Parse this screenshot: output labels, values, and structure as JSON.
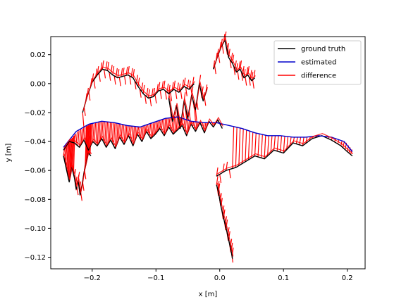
{
  "chart_data": {
    "type": "line",
    "title": "",
    "xlabel": "x [m]",
    "ylabel": "y [m]",
    "xlim": [
      -0.265,
      0.228
    ],
    "ylim": [
      -0.128,
      0.0325
    ],
    "xticks": [
      -0.2,
      -0.1,
      0.0,
      0.1,
      0.2
    ],
    "xtick_labels": [
      "−0.2",
      "−0.1",
      "0.0",
      "0.1",
      "0.2"
    ],
    "yticks": [
      0.02,
      0.0,
      -0.02,
      -0.04,
      -0.06,
      -0.08,
      -0.1,
      -0.12
    ],
    "ytick_labels": [
      "0.02",
      "0.00",
      "−0.02",
      "−0.04",
      "−0.06",
      "−0.08",
      "−0.10",
      "−0.12"
    ],
    "grid": false,
    "legend_position": "top-right",
    "series": [
      {
        "name": "ground truth",
        "color": "#000000",
        "segments": [
          {
            "x": [
              -0.245,
              -0.236,
              -0.228,
              -0.22,
              -0.213,
              -0.206,
              -0.199,
              -0.192,
              -0.185,
              -0.178,
              -0.171,
              -0.164,
              -0.157,
              -0.15,
              -0.143,
              -0.136,
              -0.129,
              -0.122,
              -0.115,
              -0.108,
              -0.101,
              -0.094,
              -0.087,
              -0.08,
              -0.073,
              -0.066,
              -0.059,
              -0.052,
              -0.045,
              -0.038,
              -0.031,
              -0.024,
              -0.017,
              -0.01,
              -0.003,
              0.004
            ],
            "y": [
              -0.046,
              -0.04,
              -0.041,
              -0.044,
              -0.039,
              -0.046,
              -0.04,
              -0.043,
              -0.038,
              -0.044,
              -0.039,
              -0.045,
              -0.037,
              -0.042,
              -0.036,
              -0.043,
              -0.035,
              -0.04,
              -0.033,
              -0.038,
              -0.035,
              -0.031,
              -0.036,
              -0.03,
              -0.035,
              -0.032,
              -0.029,
              -0.036,
              -0.028,
              -0.033,
              -0.027,
              -0.034,
              -0.026,
              -0.03,
              -0.025,
              -0.031
            ]
          },
          {
            "x": [
              -0.245,
              -0.24,
              -0.236,
              -0.232,
              -0.228,
              -0.225,
              -0.222,
              -0.219,
              -0.216,
              -0.213,
              -0.21,
              -0.206,
              -0.202
            ],
            "y": [
              -0.05,
              -0.06,
              -0.068,
              -0.058,
              -0.065,
              -0.073,
              -0.067,
              -0.077,
              -0.071,
              -0.062,
              -0.056,
              -0.048,
              -0.05
            ]
          },
          {
            "x": [
              -0.215,
              -0.208,
              -0.2,
              -0.192,
              -0.184,
              -0.176,
              -0.168,
              -0.16,
              -0.152,
              -0.144,
              -0.136,
              -0.128,
              -0.12,
              -0.112,
              -0.104,
              -0.096,
              -0.088,
              -0.08,
              -0.072,
              -0.064,
              -0.056,
              -0.048,
              -0.04
            ],
            "y": [
              -0.02,
              -0.009,
              0.001,
              0.006,
              0.01,
              0.009,
              0.006,
              0.004,
              0.005,
              0.006,
              0.004,
              -0.002,
              -0.007,
              -0.01,
              -0.009,
              -0.005,
              -0.004,
              -0.007,
              -0.004,
              -0.006,
              -0.002,
              -0.004,
              0.0
            ]
          },
          {
            "x": [
              -0.08,
              -0.074,
              -0.068,
              -0.062,
              -0.056,
              -0.05,
              -0.044,
              -0.038,
              -0.032,
              -0.026,
              -0.02
            ],
            "y": [
              -0.01,
              -0.026,
              -0.015,
              -0.031,
              -0.012,
              -0.024,
              -0.008,
              -0.018,
              0.0,
              -0.012,
              -0.004
            ]
          },
          {
            "x": [
              -0.01,
              -0.004,
              0.002,
              0.008,
              0.014,
              0.02,
              0.026,
              0.032,
              0.038,
              0.044,
              0.05,
              0.055
            ],
            "y": [
              0.01,
              0.018,
              0.025,
              0.03,
              0.018,
              0.014,
              0.008,
              0.01,
              0.004,
              0.006,
              0.002,
              0.004
            ]
          },
          {
            "x": [
              -0.005,
              -0.002,
              0.002,
              0.006,
              0.01,
              0.014,
              0.018,
              0.02
            ],
            "y": [
              -0.07,
              -0.075,
              -0.085,
              -0.093,
              -0.1,
              -0.108,
              -0.116,
              -0.121
            ]
          },
          {
            "x": [
              -0.005,
              0.01,
              0.025,
              0.04,
              0.055,
              0.07,
              0.085,
              0.1,
              0.115,
              0.13,
              0.145,
              0.16,
              0.175,
              0.19,
              0.2,
              0.208
            ],
            "y": [
              -0.064,
              -0.06,
              -0.058,
              -0.054,
              -0.05,
              -0.052,
              -0.046,
              -0.048,
              -0.041,
              -0.043,
              -0.038,
              -0.036,
              -0.039,
              -0.043,
              -0.047,
              -0.05
            ]
          }
        ]
      },
      {
        "name": "estimated",
        "color": "#0000cc",
        "segments": [
          {
            "x": [
              -0.245,
              -0.225,
              -0.205,
              -0.185,
              -0.165,
              -0.145,
              -0.125,
              -0.105,
              -0.085,
              -0.065,
              -0.045,
              -0.025,
              -0.005,
              0.015,
              0.035,
              0.055,
              0.075,
              0.095,
              0.115,
              0.135,
              0.155,
              0.175,
              0.195,
              0.208
            ],
            "y": [
              -0.044,
              -0.033,
              -0.028,
              -0.026,
              -0.027,
              -0.029,
              -0.03,
              -0.027,
              -0.024,
              -0.023,
              -0.026,
              -0.027,
              -0.027,
              -0.029,
              -0.031,
              -0.034,
              -0.036,
              -0.036,
              -0.037,
              -0.037,
              -0.036,
              -0.037,
              -0.04,
              -0.047
            ]
          }
        ]
      },
      {
        "name": "difference",
        "color": "#ff0000"
      }
    ]
  }
}
